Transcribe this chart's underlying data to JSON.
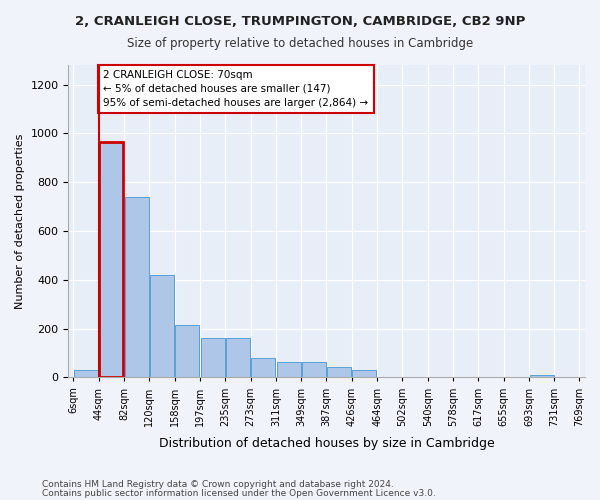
{
  "title1": "2, CRANLEIGH CLOSE, TRUMPINGTON, CAMBRIDGE, CB2 9NP",
  "title2": "Size of property relative to detached houses in Cambridge",
  "xlabel": "Distribution of detached houses by size in Cambridge",
  "ylabel": "Number of detached properties",
  "bin_labels": [
    "6sqm",
    "44sqm",
    "82sqm",
    "120sqm",
    "158sqm",
    "197sqm",
    "235sqm",
    "273sqm",
    "311sqm",
    "349sqm",
    "387sqm",
    "426sqm",
    "464sqm",
    "502sqm",
    "540sqm",
    "578sqm",
    "617sqm",
    "655sqm",
    "693sqm",
    "731sqm",
    "769sqm"
  ],
  "bar_heights": [
    30,
    965,
    740,
    420,
    215,
    160,
    160,
    80,
    65,
    65,
    45,
    30,
    0,
    0,
    0,
    0,
    0,
    0,
    10,
    0
  ],
  "bar_color": "#aec6e8",
  "bar_edge_color": "#5a9fd4",
  "highlight_bar_index": 1,
  "highlight_color": "#cc0000",
  "annotation_text": "2 CRANLEIGH CLOSE: 70sqm\n← 5% of detached houses are smaller (147)\n95% of semi-detached houses are larger (2,864) →",
  "annotation_box_color": "#ffffff",
  "annotation_box_edge": "#cc0000",
  "ylim": [
    0,
    1280
  ],
  "yticks": [
    0,
    200,
    400,
    600,
    800,
    1000,
    1200
  ],
  "footer1": "Contains HM Land Registry data © Crown copyright and database right 2024.",
  "footer2": "Contains public sector information licensed under the Open Government Licence v3.0.",
  "bg_color": "#f0f4fa",
  "plot_bg_color": "#e8eef8"
}
